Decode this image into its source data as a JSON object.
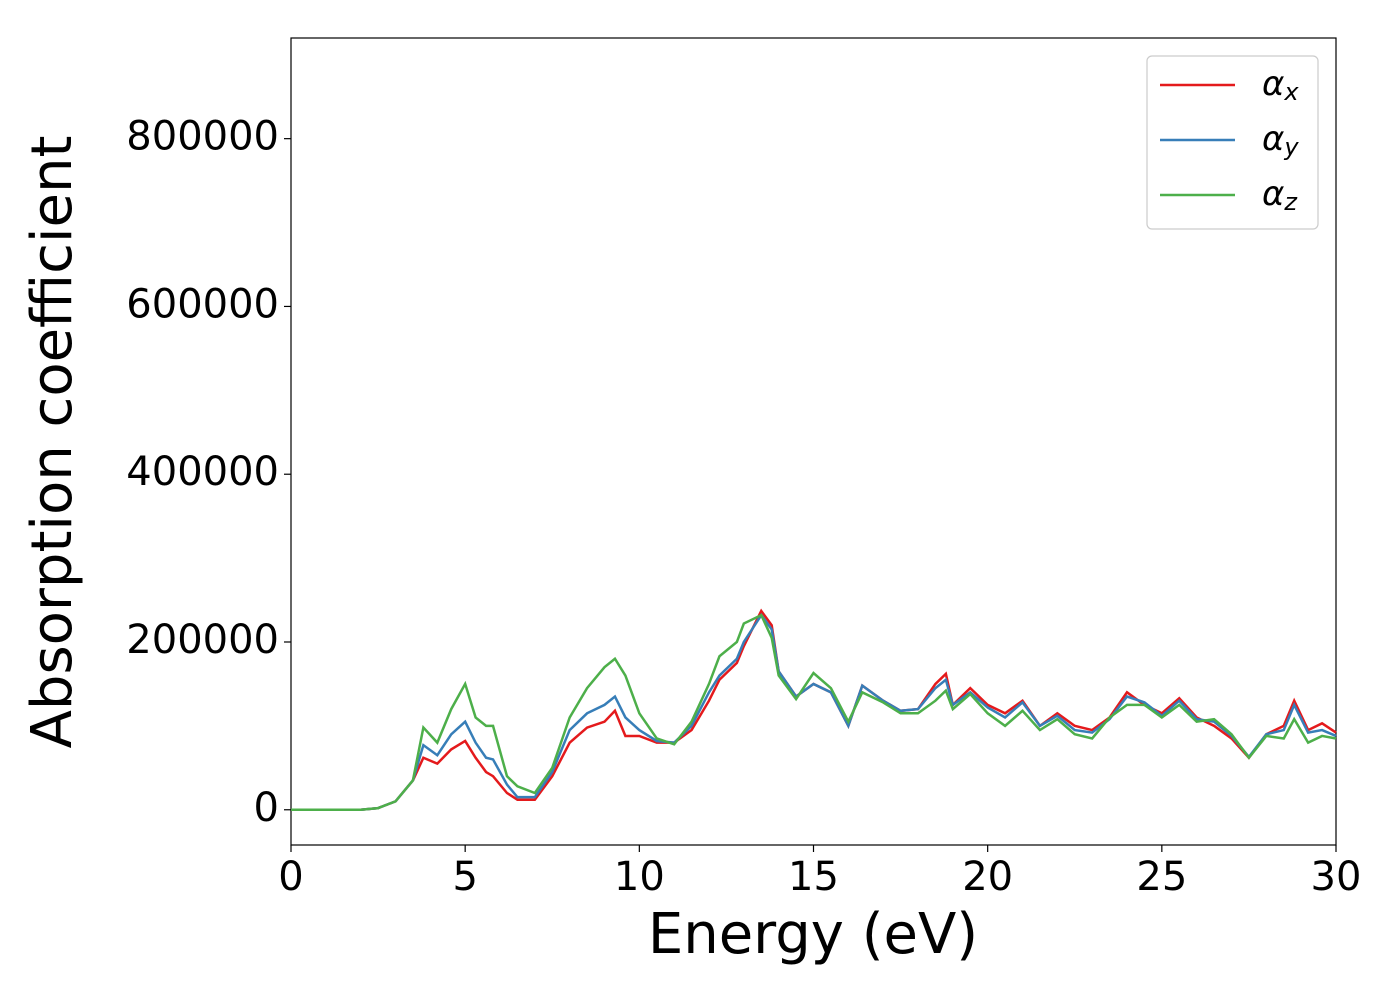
{
  "chart_data": {
    "type": "line",
    "xlabel": "Energy (eV)",
    "ylabel": "Absorption coefficient",
    "x": [
      0,
      0.5,
      1,
      1.5,
      2,
      2.5,
      3,
      3.5,
      3.8,
      4.2,
      4.6,
      5.0,
      5.3,
      5.6,
      5.8,
      6.2,
      6.5,
      7,
      7.5,
      8,
      8.5,
      9,
      9.3,
      9.6,
      10,
      10.5,
      11,
      11.5,
      12,
      12.3,
      12.8,
      13,
      13.5,
      13.8,
      14,
      14.5,
      15,
      15.5,
      16,
      16.4,
      17,
      17.5,
      18,
      18.5,
      18.8,
      19,
      19.5,
      20,
      20.5,
      21,
      21.5,
      22,
      22.5,
      23,
      23.5,
      24,
      24.5,
      25,
      25.5,
      26,
      26.5,
      27,
      27.5,
      28,
      28.5,
      28.8,
      29.2,
      29.6,
      30
    ],
    "series": [
      {
        "name": "αx",
        "color": "#e41a1c",
        "values": [
          0,
          0,
          0,
          0,
          0,
          2000,
          10000,
          35000,
          62000,
          55000,
          72000,
          82000,
          62000,
          45000,
          40000,
          20000,
          12000,
          12000,
          40000,
          80000,
          98000,
          105000,
          118000,
          88000,
          88000,
          80000,
          80000,
          95000,
          130000,
          155000,
          175000,
          195000,
          237000,
          220000,
          165000,
          135000,
          150000,
          140000,
          100000,
          148000,
          130000,
          118000,
          120000,
          150000,
          162000,
          125000,
          145000,
          125000,
          115000,
          130000,
          100000,
          115000,
          100000,
          95000,
          110000,
          140000,
          125000,
          115000,
          133000,
          110000,
          100000,
          85000,
          62000,
          90000,
          100000,
          130000,
          95000,
          103000,
          92000
        ]
      },
      {
        "name": "αy",
        "color": "#377eb8",
        "values": [
          0,
          0,
          0,
          0,
          0,
          2000,
          10000,
          35000,
          77000,
          65000,
          90000,
          105000,
          80000,
          62000,
          60000,
          30000,
          15000,
          15000,
          45000,
          95000,
          115000,
          125000,
          135000,
          110000,
          95000,
          82000,
          80000,
          100000,
          140000,
          160000,
          180000,
          200000,
          232000,
          215000,
          165000,
          135000,
          150000,
          140000,
          100000,
          148000,
          130000,
          118000,
          120000,
          145000,
          155000,
          125000,
          140000,
          122000,
          110000,
          128000,
          100000,
          112000,
          95000,
          92000,
          108000,
          135000,
          128000,
          112000,
          130000,
          108000,
          105000,
          88000,
          63000,
          90000,
          95000,
          125000,
          92000,
          95000,
          88000
        ]
      },
      {
        "name": "αz",
        "color": "#4daf4a",
        "values": [
          0,
          0,
          0,
          0,
          0,
          2000,
          10000,
          35000,
          98000,
          80000,
          120000,
          150000,
          110000,
          100000,
          100000,
          40000,
          28000,
          20000,
          50000,
          110000,
          145000,
          170000,
          180000,
          160000,
          115000,
          85000,
          78000,
          105000,
          150000,
          183000,
          200000,
          222000,
          232000,
          205000,
          160000,
          132000,
          163000,
          145000,
          105000,
          140000,
          128000,
          115000,
          115000,
          130000,
          142000,
          120000,
          138000,
          115000,
          100000,
          118000,
          95000,
          108000,
          90000,
          85000,
          110000,
          125000,
          125000,
          110000,
          125000,
          105000,
          108000,
          90000,
          62000,
          88000,
          85000,
          108000,
          80000,
          88000,
          85000
        ]
      }
    ],
    "xlim": [
      0,
      30
    ],
    "xticks": [
      0,
      5,
      10,
      15,
      20,
      25,
      30
    ],
    "ylim": [
      -42000,
      920000
    ],
    "yticks": [
      0,
      200000,
      400000,
      600000,
      800000
    ],
    "grid": false,
    "legend": "upper right"
  }
}
